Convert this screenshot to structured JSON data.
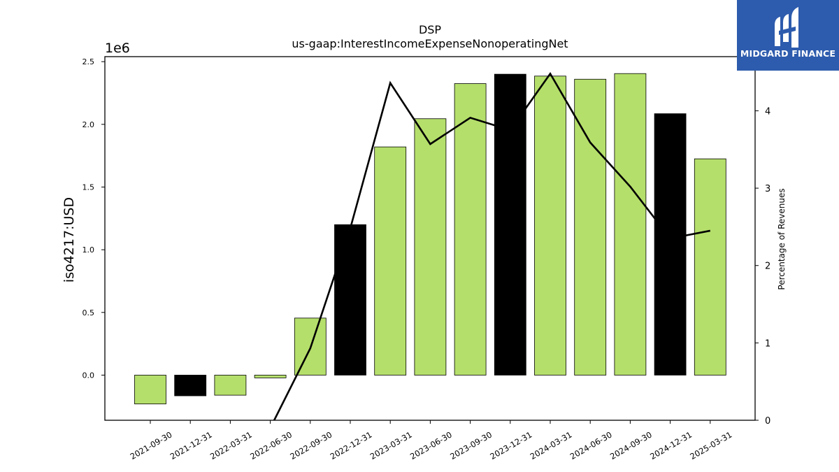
{
  "chart_data": {
    "type": "bar",
    "title": "DSP",
    "subtitle": "us-gaap:InterestIncomeExpenseNonoperatingNet",
    "ylabel": "iso4217:USD",
    "y_scale_label": "1e6",
    "y2label": "Percentage of Revenues",
    "categories": [
      "2021-09-30",
      "2021-12-31",
      "2022-03-31",
      "2022-06-30",
      "2022-09-30",
      "2022-12-31",
      "2023-03-31",
      "2023-06-30",
      "2023-09-30",
      "2023-12-31",
      "2024-03-31",
      "2024-06-30",
      "2024-09-30",
      "2024-12-31",
      "2025-03-31"
    ],
    "series": [
      {
        "type": "bar",
        "values": [
          -230000,
          -165000,
          -160000,
          -22000,
          455000,
          1200000,
          1820000,
          2045000,
          2325000,
          2400000,
          2385000,
          2360000,
          2405000,
          2085000,
          1725000
        ],
        "colors": [
          "#b5df6b",
          "#000000",
          "#b5df6b",
          "#b5df6b",
          "#b5df6b",
          "#000000",
          "#b5df6b",
          "#b5df6b",
          "#b5df6b",
          "#000000",
          "#b5df6b",
          "#b5df6b",
          "#b5df6b",
          "#000000",
          "#b5df6b"
        ]
      },
      {
        "type": "line",
        "axis": "right",
        "values": [
          null,
          null,
          null,
          -0.1,
          0.93,
          2.48,
          4.36,
          3.57,
          3.91,
          3.75,
          4.48,
          3.59,
          3.02,
          2.35,
          2.45
        ]
      }
    ],
    "yticks": [
      0.0,
      0.5,
      1.0,
      1.5,
      2.0,
      2.5
    ],
    "y2ticks": [
      0,
      1,
      2,
      3,
      4
    ],
    "ylim": [
      -360000,
      2540000
    ],
    "y2lim": [
      0,
      4.7
    ],
    "grid": false,
    "colors": {
      "bar_primary": "#b5df6b",
      "bar_quarter_end": "#000000",
      "line": "#000000"
    }
  },
  "logo": {
    "text": "MIDGARD FINANCE",
    "background": "#2d5bad"
  }
}
